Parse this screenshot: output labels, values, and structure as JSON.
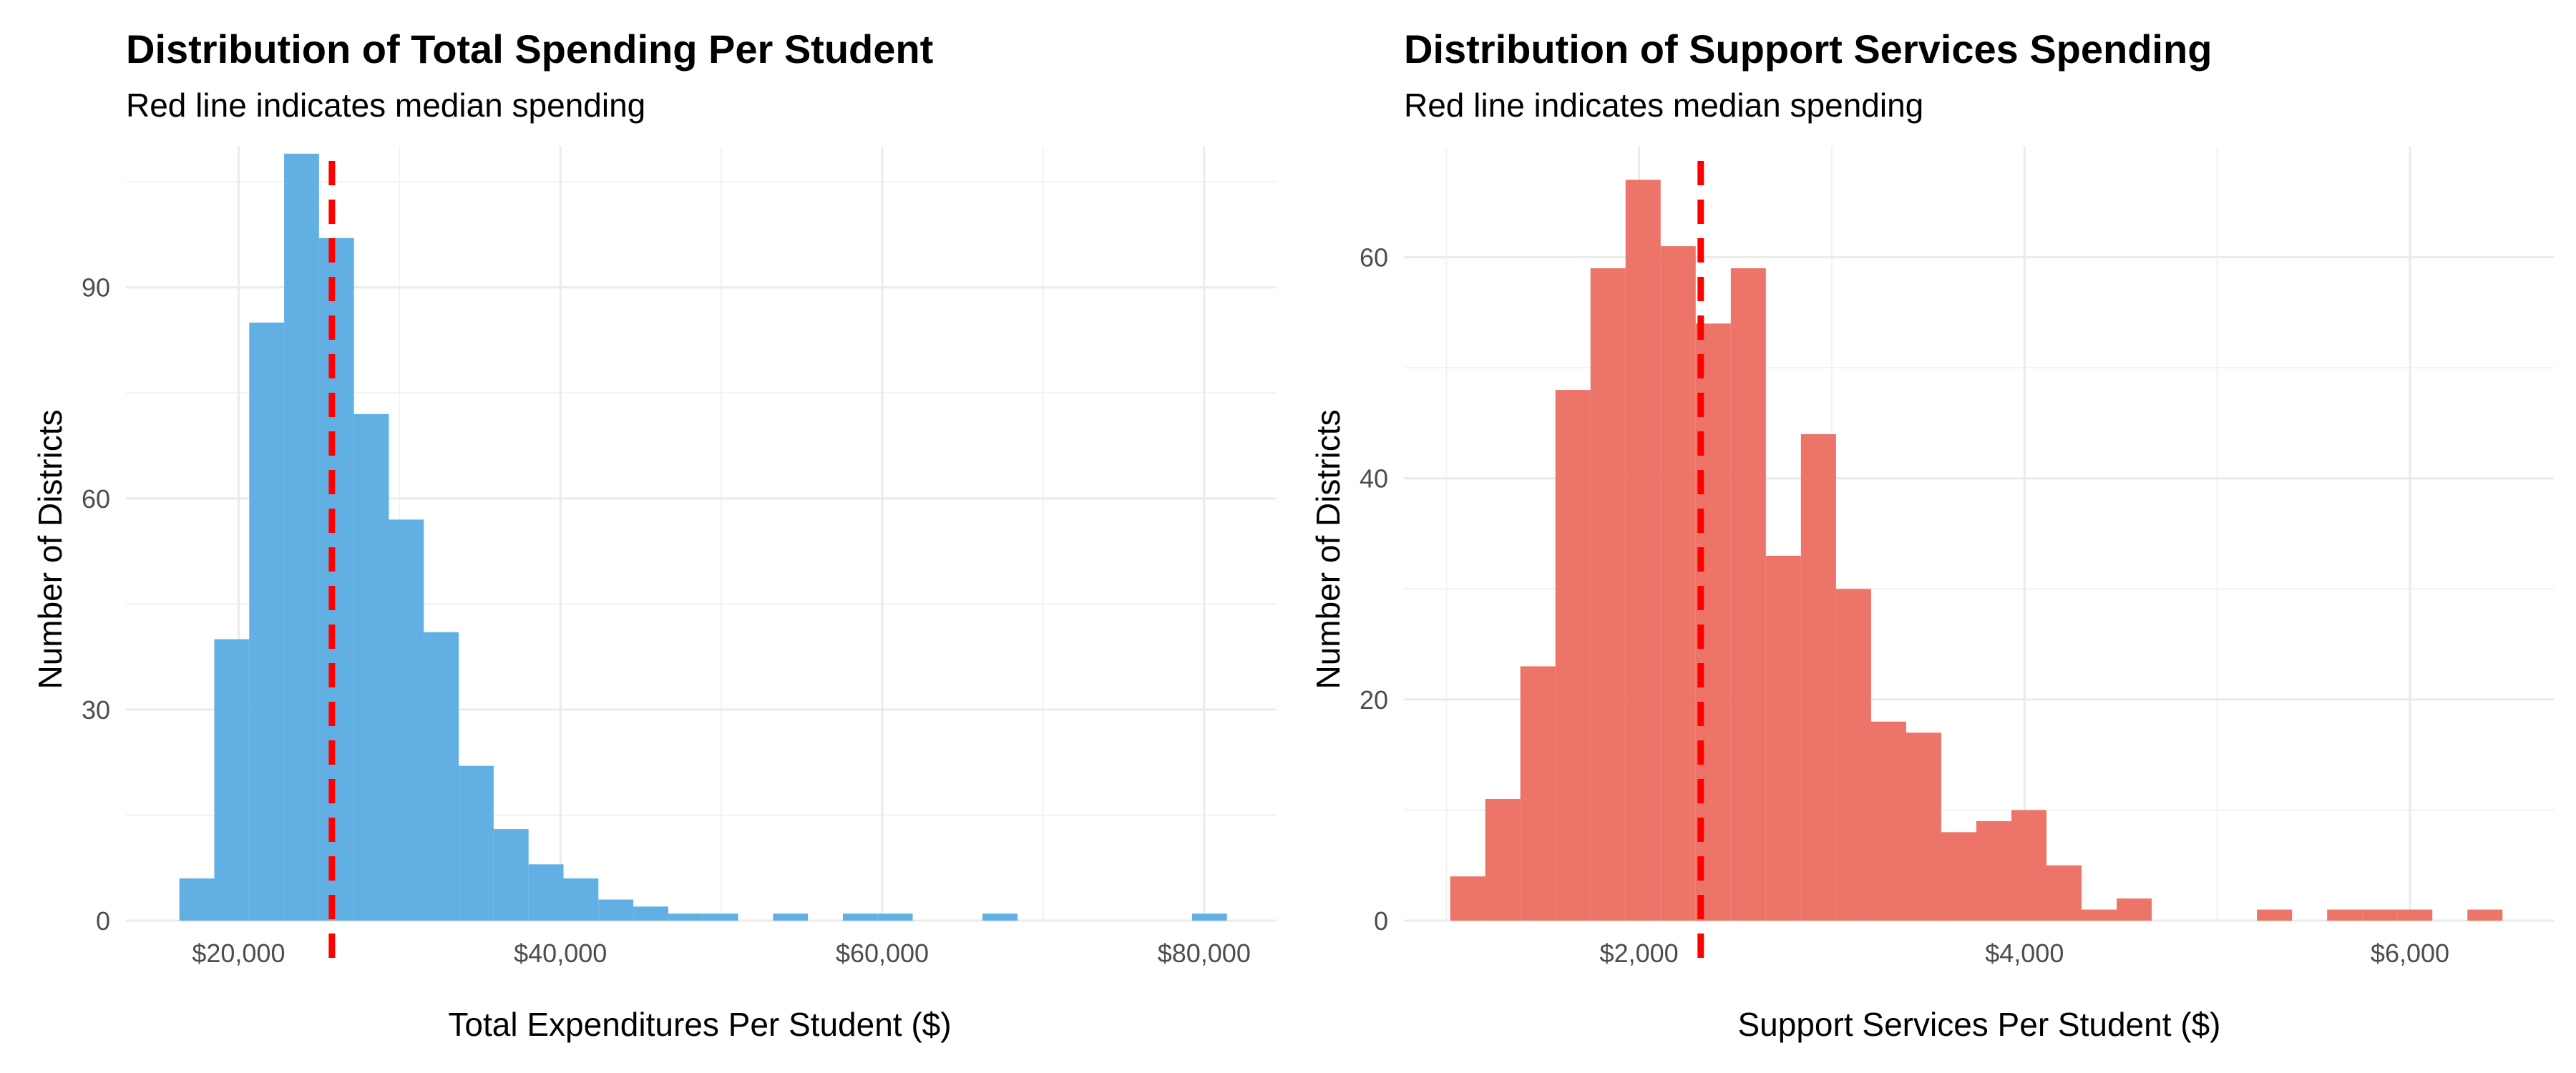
{
  "colors": {
    "left_fill": "#5dade2",
    "right_fill": "#ec7063",
    "median_line": "#ff0000"
  },
  "chart_data": [
    {
      "type": "bar",
      "title": "Distribution of Total Spending Per Student",
      "subtitle": "Red line indicates median spending",
      "xlabel": "Total Expenditures Per Student ($)",
      "ylabel": "Number of Districts",
      "xlim": [
        13000,
        84500
      ],
      "ylim": [
        0,
        110
      ],
      "x_ticks": [
        20000,
        40000,
        60000,
        80000
      ],
      "x_tick_labels": [
        "$20,000",
        "$40,000",
        "$60,000",
        "$80,000"
      ],
      "y_ticks": [
        0,
        30,
        60,
        90
      ],
      "y_tick_labels": [
        "0",
        "30",
        "60",
        "90"
      ],
      "bin_width": 2170,
      "bins": [
        {
          "start": 16320,
          "count": 6
        },
        {
          "start": 18490,
          "count": 40
        },
        {
          "start": 20660,
          "count": 85
        },
        {
          "start": 22830,
          "count": 109
        },
        {
          "start": 25000,
          "count": 97
        },
        {
          "start": 27170,
          "count": 72
        },
        {
          "start": 29340,
          "count": 57
        },
        {
          "start": 31510,
          "count": 41
        },
        {
          "start": 33680,
          "count": 22
        },
        {
          "start": 35850,
          "count": 13
        },
        {
          "start": 38020,
          "count": 8
        },
        {
          "start": 40190,
          "count": 6
        },
        {
          "start": 42360,
          "count": 3
        },
        {
          "start": 44530,
          "count": 2
        },
        {
          "start": 46700,
          "count": 1
        },
        {
          "start": 48870,
          "count": 1
        },
        {
          "start": 53210,
          "count": 1
        },
        {
          "start": 57550,
          "count": 1
        },
        {
          "start": 59720,
          "count": 1
        },
        {
          "start": 66230,
          "count": 1
        },
        {
          "start": 79250,
          "count": 1
        }
      ],
      "median": 25800,
      "grid": true
    },
    {
      "type": "bar",
      "title": "Distribution of Support Services Spending",
      "subtitle": "Red line indicates median spending",
      "xlabel": "Support Services Per Student ($)",
      "ylabel": "Number of Districts",
      "xlim": [
        780,
        6750
      ],
      "ylim": [
        0,
        70
      ],
      "x_ticks": [
        2000,
        4000,
        6000
      ],
      "x_tick_labels": [
        "$2,000",
        "$4,000",
        "$6,000"
      ],
      "y_ticks": [
        0,
        20,
        40,
        60
      ],
      "y_tick_labels": [
        "0",
        "20",
        "40",
        "60"
      ],
      "bin_width": 182,
      "bins": [
        {
          "start": 1020,
          "count": 4
        },
        {
          "start": 1202,
          "count": 11
        },
        {
          "start": 1384,
          "count": 23
        },
        {
          "start": 1566,
          "count": 48
        },
        {
          "start": 1748,
          "count": 59
        },
        {
          "start": 1930,
          "count": 67
        },
        {
          "start": 2112,
          "count": 61
        },
        {
          "start": 2294,
          "count": 54
        },
        {
          "start": 2476,
          "count": 59
        },
        {
          "start": 2658,
          "count": 33
        },
        {
          "start": 2840,
          "count": 44
        },
        {
          "start": 3022,
          "count": 30
        },
        {
          "start": 3204,
          "count": 18
        },
        {
          "start": 3386,
          "count": 17
        },
        {
          "start": 3568,
          "count": 8
        },
        {
          "start": 3750,
          "count": 9
        },
        {
          "start": 3932,
          "count": 10
        },
        {
          "start": 4114,
          "count": 5
        },
        {
          "start": 4296,
          "count": 1
        },
        {
          "start": 4478,
          "count": 2
        },
        {
          "start": 5206,
          "count": 1
        },
        {
          "start": 5570,
          "count": 1
        },
        {
          "start": 5752,
          "count": 1
        },
        {
          "start": 5934,
          "count": 1
        },
        {
          "start": 6298,
          "count": 1
        }
      ],
      "median": 2320,
      "grid": true
    }
  ]
}
